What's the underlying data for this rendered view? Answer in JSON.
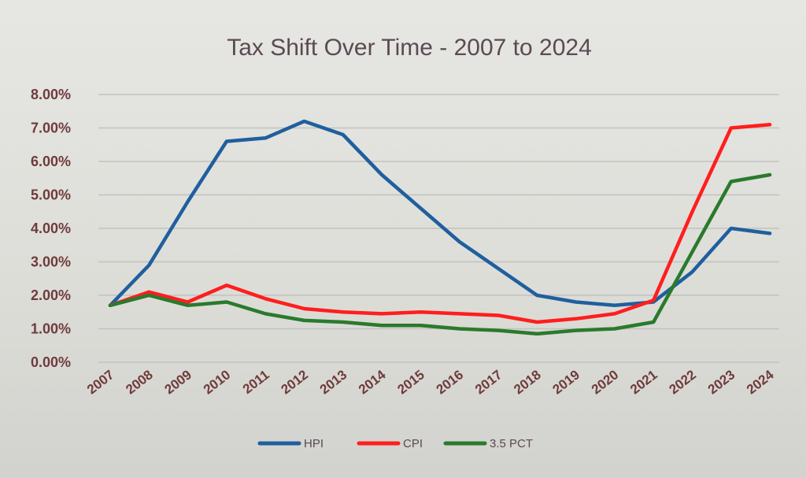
{
  "chart_data": {
    "type": "line",
    "title": "Tax Shift Over Time - 2007 to 2024",
    "xlabel": "",
    "ylabel": "",
    "ylim": [
      0,
      8
    ],
    "y_ticks": [
      "0.00%",
      "1.00%",
      "2.00%",
      "3.00%",
      "4.00%",
      "5.00%",
      "6.00%",
      "7.00%",
      "8.00%"
    ],
    "categories": [
      "2007",
      "2008",
      "2009",
      "2010",
      "2011",
      "2012",
      "2013",
      "2014",
      "2015",
      "2016",
      "2017",
      "2018",
      "2019",
      "2020",
      "2021",
      "2022",
      "2023",
      "2024"
    ],
    "grid": true,
    "legend_position": "bottom",
    "series": [
      {
        "name": "HPI",
        "color": "#1f5f9e",
        "values": [
          1.7,
          2.9,
          4.8,
          6.6,
          6.7,
          7.2,
          6.8,
          5.6,
          4.6,
          3.6,
          2.8,
          2.0,
          1.8,
          1.7,
          1.8,
          2.7,
          4.0,
          3.85
        ]
      },
      {
        "name": "CPI",
        "color": "#ff1e1e",
        "values": [
          1.7,
          2.1,
          1.8,
          2.3,
          1.9,
          1.6,
          1.5,
          1.45,
          1.5,
          1.45,
          1.4,
          1.2,
          1.3,
          1.45,
          1.85,
          4.5,
          7.0,
          7.1
        ]
      },
      {
        "name": "3.5 PCT",
        "color": "#2a7a2c",
        "values": [
          1.7,
          2.0,
          1.7,
          1.8,
          1.45,
          1.25,
          1.2,
          1.1,
          1.1,
          1.0,
          0.95,
          0.85,
          0.95,
          1.0,
          1.2,
          3.3,
          5.4,
          5.6
        ]
      }
    ]
  }
}
